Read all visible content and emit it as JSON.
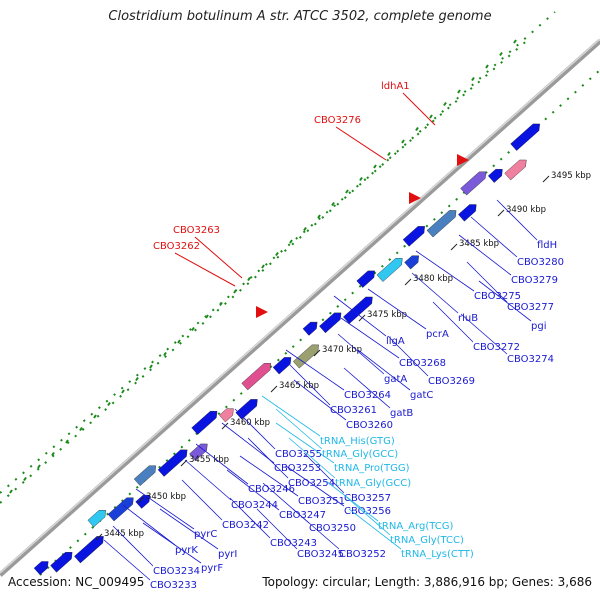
{
  "title": "Clostridium botulinum A str. ATCC 3502, complete genome",
  "footer": {
    "accession": "Accession: NC_009495",
    "stats": "Topology: circular; Length: 3,886,916 bp; Genes: 3,686"
  },
  "colors": {
    "backbone": "#8a8a8a",
    "cds": "#0a14e0",
    "trna": "#30c8f0",
    "label_blue": "#1a1ad0",
    "label_red": "#e01010",
    "label_cyan": "#20b8e8",
    "dots": "#1a8a1a"
  },
  "kbp_ticks": [
    "3445 kbp",
    "3450 kbp",
    "3455 kbp",
    "3460 kbp",
    "3465 kbp",
    "3470 kbp",
    "3475 kbp",
    "3480 kbp",
    "3485 kbp",
    "3490 kbp",
    "3495 kbp"
  ],
  "red_labels": [
    "ldhA1",
    "CBO3276",
    "CBO3263",
    "CBO3262"
  ],
  "gene_labels": [
    {
      "text": "fldH",
      "color": "blue"
    },
    {
      "text": "CBO3280",
      "color": "blue"
    },
    {
      "text": "CBO3279",
      "color": "blue"
    },
    {
      "text": "CBO3275",
      "color": "blue"
    },
    {
      "text": "CBO3277",
      "color": "blue"
    },
    {
      "text": "rluB",
      "color": "blue"
    },
    {
      "text": "pgi",
      "color": "blue"
    },
    {
      "text": "pcrA",
      "color": "blue"
    },
    {
      "text": "CBO3272",
      "color": "blue"
    },
    {
      "text": "CBO3274",
      "color": "blue"
    },
    {
      "text": "ligA",
      "color": "blue"
    },
    {
      "text": "CBO3268",
      "color": "blue"
    },
    {
      "text": "CBO3269",
      "color": "blue"
    },
    {
      "text": "gatA",
      "color": "blue"
    },
    {
      "text": "gatC",
      "color": "blue"
    },
    {
      "text": "CBO3264",
      "color": "blue"
    },
    {
      "text": "CBO3261",
      "color": "blue"
    },
    {
      "text": "gatB",
      "color": "blue"
    },
    {
      "text": "CBO3260",
      "color": "blue"
    },
    {
      "text": "tRNA_His(GTG)",
      "color": "cyan"
    },
    {
      "text": "CBO3255",
      "color": "blue"
    },
    {
      "text": "tRNA_Gly(GCC)",
      "color": "cyan"
    },
    {
      "text": "CBO3253",
      "color": "blue"
    },
    {
      "text": "tRNA_Pro(TGG)",
      "color": "cyan"
    },
    {
      "text": "CBO3254",
      "color": "blue"
    },
    {
      "text": "tRNA_Gly(GCC)",
      "color": "cyan"
    },
    {
      "text": "CBO3246",
      "color": "blue"
    },
    {
      "text": "CBO3251",
      "color": "blue"
    },
    {
      "text": "CBO3257",
      "color": "blue"
    },
    {
      "text": "CBO3244",
      "color": "blue"
    },
    {
      "text": "CBO3247",
      "color": "blue"
    },
    {
      "text": "CBO3256",
      "color": "blue"
    },
    {
      "text": "CBO3242",
      "color": "blue"
    },
    {
      "text": "CBO3250",
      "color": "blue"
    },
    {
      "text": "tRNA_Arg(TCG)",
      "color": "cyan"
    },
    {
      "text": "pyrC",
      "color": "blue"
    },
    {
      "text": "CBO3243",
      "color": "blue"
    },
    {
      "text": "tRNA_Gly(TCC)",
      "color": "cyan"
    },
    {
      "text": "pyrK",
      "color": "blue"
    },
    {
      "text": "pyrI",
      "color": "blue"
    },
    {
      "text": "CBO3245",
      "color": "blue"
    },
    {
      "text": "CBO3252",
      "color": "blue"
    },
    {
      "text": "tRNA_Lys(CTT)",
      "color": "cyan"
    },
    {
      "text": "pyrF",
      "color": "blue"
    },
    {
      "text": "CBO3234",
      "color": "blue"
    },
    {
      "text": "CBO3233",
      "color": "blue"
    }
  ]
}
